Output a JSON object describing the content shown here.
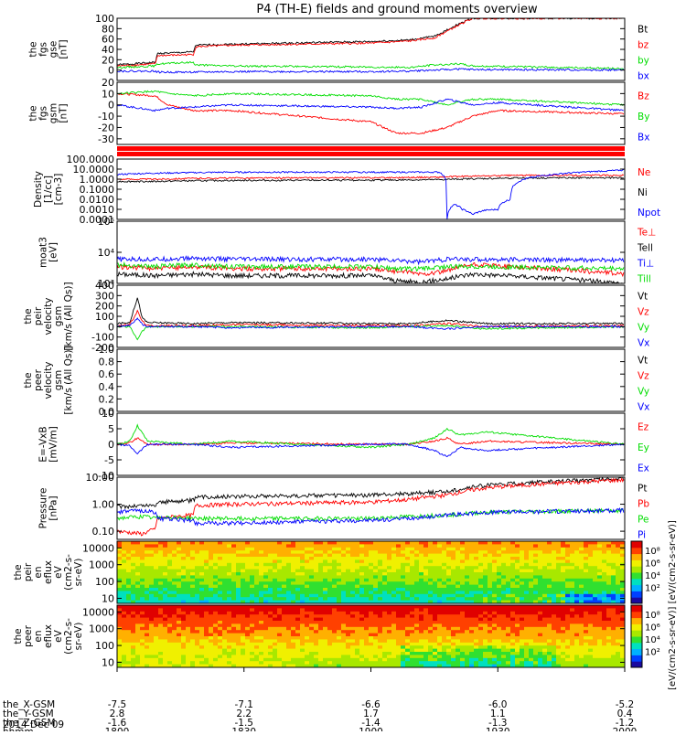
{
  "title": "P4 (TH-E) fields and ground moments overview",
  "footer": {
    "rows": [
      {
        "label": "the_X-GSM",
        "values": [
          "-7.5",
          "-7.1",
          "-6.6",
          "-6.0",
          "-5.2"
        ]
      },
      {
        "label": "the_Y-GSM",
        "values": [
          "2.8",
          "2.2",
          "1.7",
          "1.1",
          "0.4"
        ]
      },
      {
        "label": "the_Z-GSM",
        "values": [
          "-1.6",
          "-1.5",
          "-1.4",
          "-1.3",
          "-1.2"
        ]
      },
      {
        "label": "hhmm",
        "values": [
          "1800",
          "1830",
          "1900",
          "1930",
          "2000"
        ]
      }
    ],
    "date": "2014 Dec 09"
  },
  "colorbar": {
    "label": "[eV/(cm2-s-sr-eV)] [eV/(cm2-s-sr-eV)]",
    "ticks_top": [
      "10⁸",
      "10⁶",
      "10⁴",
      "10²"
    ],
    "ticks_bottom": [
      "10⁸",
      "10⁶",
      "10⁴",
      "10²"
    ]
  },
  "colors": {
    "black": "#000000",
    "red": "#ff0000",
    "green": "#00dd00",
    "blue": "#0000ff"
  },
  "chart_data": [
    {
      "id": "fgs_gse",
      "type": "line",
      "ylabel": [
        "the",
        "fgs",
        "gse",
        "[nT]"
      ],
      "ylim": [
        -20,
        100
      ],
      "yticks": [
        0,
        20,
        40,
        60,
        80,
        100
      ],
      "ytick_labels": [
        "0",
        "20",
        "40",
        "60",
        "80",
        "100"
      ],
      "scale": "linear",
      "x": [
        1800,
        1815,
        1816,
        1830,
        1831,
        1845,
        1900,
        1915,
        1925,
        1935,
        1940,
        2000
      ],
      "series": [
        {
          "name": "Bt",
          "color": "#000000",
          "values": [
            10,
            15,
            32,
            35,
            48,
            50,
            55,
            58,
            65,
            90,
            100,
            100
          ]
        },
        {
          "name": "bz",
          "color": "#ff0000",
          "values": [
            8,
            12,
            28,
            30,
            45,
            48,
            52,
            56,
            62,
            88,
            100,
            100
          ]
        },
        {
          "name": "by",
          "color": "#00dd00",
          "values": [
            5,
            8,
            12,
            15,
            10,
            8,
            6,
            5,
            10,
            12,
            8,
            3
          ]
        },
        {
          "name": "bx",
          "color": "#0000ff",
          "values": [
            -2,
            -2,
            -4,
            -4,
            -4,
            -3,
            -3,
            -2,
            0,
            2,
            1,
            0
          ]
        }
      ]
    },
    {
      "id": "fgs_gsm",
      "type": "line",
      "ylabel": [
        "the",
        "fgs",
        "gsm",
        "[nT]"
      ],
      "ylim": [
        -35,
        20
      ],
      "yticks": [
        -30,
        -20,
        -10,
        0,
        10,
        20
      ],
      "ytick_labels": [
        "-30",
        "-20",
        "-10",
        "0",
        "10",
        "20"
      ],
      "scale": "linear",
      "x": [
        1800,
        1815,
        1820,
        1830,
        1845,
        1900,
        1910,
        1920,
        1930,
        1940,
        1950,
        2000
      ],
      "series": [
        {
          "name": "Bz",
          "color": "#ff0000",
          "values": [
            10,
            8,
            0,
            -5,
            -5,
            -15,
            -25,
            -25,
            -20,
            -10,
            -5,
            -8
          ]
        },
        {
          "name": "By",
          "color": "#00dd00",
          "values": [
            10,
            12,
            10,
            8,
            10,
            8,
            5,
            5,
            0,
            5,
            5,
            0
          ]
        },
        {
          "name": "Bx",
          "color": "#0000ff",
          "values": [
            0,
            -5,
            -3,
            -2,
            0,
            -2,
            -3,
            -2,
            5,
            0,
            2,
            -5
          ]
        }
      ]
    },
    {
      "id": "density",
      "type": "line",
      "ylabel": [
        "Density",
        "[1/cc]",
        "[cm-3]"
      ],
      "ylim": [
        0.0001,
        100
      ],
      "yticks": [
        100,
        10,
        1,
        0.1,
        0.01,
        0.001,
        0.0001
      ],
      "ytick_labels": [
        "100.0000",
        "10.0000",
        "1.0000",
        "0.1000",
        "0.0100",
        "0.0010",
        "0.0001"
      ],
      "scale": "log",
      "x": [
        1800,
        1815,
        1830,
        1845,
        1900,
        1915,
        1927,
        1930,
        1933,
        1936,
        1940,
        1945,
        1950,
        1955,
        2000
      ],
      "series": [
        {
          "name": "Ne",
          "color": "#ff0000",
          "values": [
            1.0,
            1.0,
            1.2,
            1.3,
            1.4,
            1.5,
            1.6,
            1.7,
            1.8,
            1.9,
            2.0,
            2.1,
            2.2,
            2.4,
            2.5
          ]
        },
        {
          "name": "Ni",
          "color": "#000000",
          "values": [
            0.6,
            0.6,
            0.7,
            0.75,
            0.8,
            0.85,
            0.9,
            0.95,
            1.0,
            1.05,
            1.1,
            1.15,
            1.2,
            1.3,
            1.4
          ]
        },
        {
          "name": "Npot",
          "color": "#0000ff",
          "values": [
            3,
            4,
            4.5,
            5,
            5,
            5,
            5,
            0.0001,
            0.003,
            0.001,
            0.0003,
            0.0008,
            0.001,
            0.01,
            8
          ]
        }
      ]
    },
    {
      "id": "temperature",
      "type": "line",
      "ylabel": [
        "moat3",
        "[eV]"
      ],
      "ylim": [
        1000,
        100000
      ],
      "yticks": [
        1000,
        10000,
        100000
      ],
      "ytick_labels": [
        "10³",
        "10⁴",
        "10⁵"
      ],
      "scale": "log",
      "x": [
        1800,
        1815,
        1830,
        1845,
        1900,
        1910,
        1920,
        1930,
        1940,
        2000
      ],
      "series": [
        {
          "name": "Te⊥",
          "color": "#ff0000",
          "values": [
            3500,
            3000,
            3500,
            3000,
            3000,
            2500,
            2000,
            2500,
            4000,
            2000
          ]
        },
        {
          "name": "Tell",
          "color": "#000000",
          "values": [
            2000,
            1800,
            2000,
            1800,
            1800,
            1200,
            1100,
            1400,
            2000,
            1000
          ]
        },
        {
          "name": "Ti⊥",
          "color": "#0000ff",
          "values": [
            6000,
            6000,
            6500,
            6000,
            6000,
            5500,
            5000,
            6000,
            6000,
            5500
          ]
        },
        {
          "name": "Till",
          "color": "#00dd00",
          "values": [
            4000,
            3500,
            4000,
            3500,
            3500,
            3000,
            3000,
            3500,
            3500,
            3000
          ]
        }
      ]
    },
    {
      "id": "peir_velocity",
      "type": "line",
      "ylabel": [
        "the",
        "peir",
        "velocity",
        "gsm",
        "[km/s (All Qs)]"
      ],
      "ylim": [
        -200,
        400
      ],
      "yticks": [
        -200,
        -100,
        0,
        100,
        200,
        300,
        400
      ],
      "ytick_labels": [
        "-200",
        "-100",
        "0",
        "100",
        "200",
        "300",
        "400"
      ],
      "scale": "linear",
      "x": [
        1800,
        1805,
        1808,
        1810,
        1812,
        1830,
        1845,
        1900,
        1915,
        1930,
        1945,
        2000
      ],
      "series": [
        {
          "name": "Vt",
          "color": "#000000",
          "values": [
            30,
            40,
            280,
            80,
            40,
            30,
            40,
            30,
            30,
            60,
            30,
            30
          ]
        },
        {
          "name": "Vz",
          "color": "#ff0000",
          "values": [
            10,
            20,
            150,
            50,
            10,
            10,
            20,
            10,
            10,
            30,
            0,
            10
          ]
        },
        {
          "name": "Vy",
          "color": "#00dd00",
          "values": [
            0,
            0,
            -120,
            -40,
            0,
            0,
            0,
            -10,
            0,
            10,
            -20,
            0
          ]
        },
        {
          "name": "Vx",
          "color": "#0000ff",
          "values": [
            0,
            10,
            80,
            20,
            0,
            0,
            -10,
            0,
            0,
            -20,
            0,
            0
          ]
        }
      ]
    },
    {
      "id": "peer_velocity",
      "type": "line",
      "ylabel": [
        "the",
        "peer",
        "velocity",
        "gsm",
        "[km/s (All Qs)]"
      ],
      "ylim": [
        0,
        1
      ],
      "yticks": [
        0,
        0.2,
        0.4,
        0.6,
        0.8,
        1.0
      ],
      "ytick_labels": [
        "0.0",
        "0.2",
        "0.4",
        "0.6",
        "0.8",
        "1.0"
      ],
      "scale": "linear",
      "x": [],
      "series": [
        {
          "name": "Vt",
          "color": "#000000",
          "values": []
        },
        {
          "name": "Vz",
          "color": "#ff0000",
          "values": []
        },
        {
          "name": "Vy",
          "color": "#00dd00",
          "values": []
        },
        {
          "name": "Vx",
          "color": "#0000ff",
          "values": []
        }
      ]
    },
    {
      "id": "efield",
      "type": "line",
      "ylabel": [
        "E=-VxB",
        "[mV/m]"
      ],
      "ylim": [
        -10,
        10
      ],
      "yticks": [
        -10,
        -5,
        0,
        5,
        10
      ],
      "ytick_labels": [
        "-10",
        "-5",
        "0",
        "5",
        "10"
      ],
      "scale": "linear",
      "x": [
        1800,
        1805,
        1808,
        1812,
        1830,
        1845,
        1900,
        1915,
        1925,
        1930,
        1935,
        1945,
        2000
      ],
      "series": [
        {
          "name": "Ez",
          "color": "#ff0000",
          "values": [
            0,
            0.5,
            2,
            0,
            0,
            0.5,
            0,
            0,
            1,
            2,
            0,
            1,
            0
          ]
        },
        {
          "name": "Ey",
          "color": "#00dd00",
          "values": [
            0,
            1,
            6,
            1,
            0,
            1,
            -1,
            0,
            2,
            5,
            3,
            4,
            0
          ]
        },
        {
          "name": "Ex",
          "color": "#0000ff",
          "values": [
            0,
            -0.5,
            -3,
            0,
            0,
            -1,
            0,
            0,
            -2,
            -4,
            -1,
            -2,
            0
          ]
        }
      ]
    },
    {
      "id": "pressure",
      "type": "line",
      "ylabel": [
        "Pressure",
        "[nPa]"
      ],
      "ylim": [
        0.05,
        10
      ],
      "yticks": [
        10,
        1,
        0.1
      ],
      "ytick_labels": [
        "10.00",
        "1.00",
        "0.10"
      ],
      "scale": "log",
      "x": [
        1800,
        1810,
        1815,
        1816,
        1830,
        1831,
        1845,
        1900,
        1915,
        1930,
        1945,
        2000
      ],
      "series": [
        {
          "name": "Pt",
          "color": "#000000",
          "values": [
            0.8,
            0.9,
            0.9,
            1.2,
            1.4,
            1.8,
            2.0,
            2.2,
            2.5,
            3.0,
            5.0,
            9.0
          ]
        },
        {
          "name": "Pb",
          "color": "#ff0000",
          "values": [
            0.1,
            0.08,
            0.12,
            0.3,
            0.4,
            0.9,
            1.0,
            1.2,
            1.5,
            2.2,
            4.0,
            8.0
          ]
        },
        {
          "name": "Pe",
          "color": "#00dd00",
          "values": [
            0.3,
            0.35,
            0.3,
            0.35,
            0.3,
            0.3,
            0.3,
            0.3,
            0.35,
            0.4,
            0.5,
            0.6
          ]
        },
        {
          "name": "Pi",
          "color": "#0000ff",
          "values": [
            0.5,
            0.6,
            0.5,
            0.3,
            0.25,
            0.2,
            0.2,
            0.25,
            0.3,
            0.4,
            0.5,
            0.6
          ]
        }
      ]
    },
    {
      "id": "peir_eflux",
      "type": "heatmap",
      "ylabel": [
        "the",
        "peir",
        "en",
        "eflux",
        "eV",
        "(cm2-s-",
        "sr-eV)"
      ],
      "ylim": [
        5,
        25000
      ],
      "yticks": [
        10,
        100,
        1000,
        10000
      ],
      "ytick_labels": [
        "10",
        "100",
        "1000",
        "10000"
      ],
      "scale": "log"
    },
    {
      "id": "peer_eflux",
      "type": "heatmap",
      "ylabel": [
        "the",
        "peer",
        "en",
        "eflux",
        "eV",
        "(cm2-s-",
        "sr-eV)"
      ],
      "ylim": [
        5,
        25000
      ],
      "yticks": [
        10,
        100,
        1000,
        10000
      ],
      "ytick_labels": [
        "10",
        "100",
        "1000",
        "10000"
      ],
      "scale": "log"
    }
  ]
}
